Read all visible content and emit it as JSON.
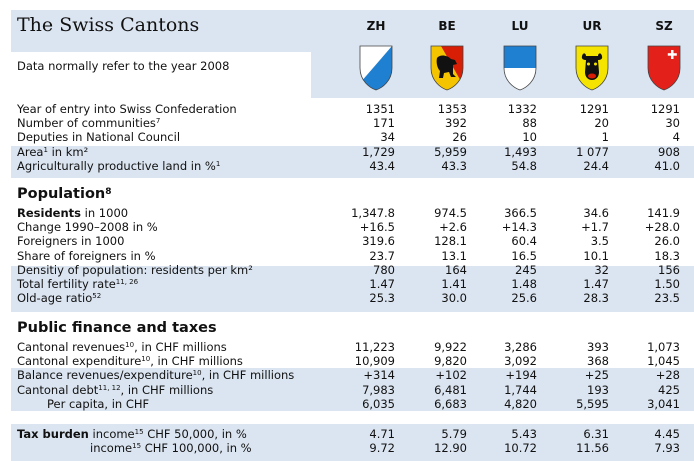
{
  "title": "The Swiss Cantons",
  "subtitle": "Data normally refer to the year 2008",
  "cantons": [
    {
      "code": "ZH",
      "crest": "zurich-crest-icon",
      "colors": [
        "#ffffff",
        "#1f7fd1"
      ]
    },
    {
      "code": "BE",
      "crest": "bern-crest-icon",
      "colors": [
        "#d81e05",
        "#f5c400",
        "#111111"
      ]
    },
    {
      "code": "LU",
      "crest": "lucerne-crest-icon",
      "colors": [
        "#1f7fd1",
        "#ffffff"
      ]
    },
    {
      "code": "UR",
      "crest": "uri-crest-icon",
      "colors": [
        "#f5e400",
        "#111111",
        "#d81e05"
      ]
    },
    {
      "code": "SZ",
      "crest": "schwyz-crest-icon",
      "colors": [
        "#e4201a",
        "#ffffff"
      ]
    }
  ],
  "sections": [
    {
      "heading": "",
      "rows": [
        {
          "label": "Year of entry into Swiss Confederation",
          "values": [
            "1351",
            "1353",
            "1332",
            "1291",
            "1291"
          ]
        },
        {
          "label": "Number of communities",
          "sup": "7",
          "values": [
            "171",
            "392",
            "88",
            "20",
            "30"
          ]
        },
        {
          "label": "Deputies in National Council",
          "values": [
            "34",
            "26",
            "10",
            "1",
            "4"
          ]
        },
        {
          "label": "Area",
          "sup": "1",
          "suffix": " in km²",
          "values": [
            "1,729",
            "5,959",
            "1,493",
            "1 077",
            "908"
          ]
        },
        {
          "label": "Agriculturally productive land in %",
          "sup": "1",
          "values": [
            "43.4",
            "43.3",
            "54.8",
            "24.4",
            "41.0"
          ]
        }
      ]
    },
    {
      "heading": "Population",
      "heading_sup": "8",
      "rows": [
        {
          "label_bold": "Residents",
          "label": " in 1000",
          "values": [
            "1,347.8",
            "974.5",
            "366.5",
            "34.6",
            "141.9"
          ]
        },
        {
          "label": "Change 1990–2008 in %",
          "values": [
            "+16.5",
            "+2.6",
            "+14.3",
            "+1.7",
            "+28.0"
          ]
        },
        {
          "label": "Foreigners in 1000",
          "values": [
            "319.6",
            "128.1",
            "60.4",
            "3.5",
            "26.0"
          ]
        },
        {
          "label": "Share of foreigners in %",
          "values": [
            "23.7",
            "13.1",
            "16.5",
            "10.1",
            "18.3"
          ]
        },
        {
          "label": "Densitiy of population: residents per km²",
          "values": [
            "780",
            "164",
            "245",
            "32",
            "156"
          ]
        },
        {
          "label": "Total fertility rate",
          "sup": "11, 26",
          "values": [
            "1.47",
            "1.41",
            "1.48",
            "1.47",
            "1.50"
          ]
        },
        {
          "label": "Old-age ratio",
          "sup": "52",
          "values": [
            "25.3",
            "30.0",
            "25.6",
            "28.3",
            "23.5"
          ]
        }
      ]
    },
    {
      "heading": "Public finance and taxes",
      "rows": [
        {
          "label": "Cantonal revenues",
          "sup": "10",
          "suffix": ", in CHF millions",
          "values": [
            "11,223",
            "9,922",
            "3,286",
            "393",
            "1,073"
          ]
        },
        {
          "label": "Cantonal expenditure",
          "sup": "10",
          "suffix": ", in CHF millions",
          "values": [
            "10,909",
            "9,820",
            "3,092",
            "368",
            "1,045"
          ]
        },
        {
          "label": "Balance revenues/expenditure",
          "sup": "10",
          "suffix": ", in CHF millions",
          "values": [
            "+314",
            "+102",
            "+194",
            "+25",
            "+28"
          ]
        },
        {
          "label": "Cantonal debt",
          "sup": "11, 12",
          "suffix": ", in CHF millions",
          "values": [
            "7,983",
            "6,481",
            "1,744",
            "193",
            "425"
          ]
        },
        {
          "label": "Per capita, in CHF",
          "indent": true,
          "values": [
            "6,035",
            "6,683",
            "4,820",
            "5,595",
            "3,041"
          ]
        }
      ]
    },
    {
      "heading": "",
      "rows": [
        {
          "label_bold": "Tax burden",
          "label": " income",
          "sup": "15",
          "suffix": " CHF 50,000, in %",
          "values": [
            "4.71",
            "5.79",
            "5.43",
            "6.31",
            "4.45"
          ]
        },
        {
          "label": "income",
          "sup": "15",
          "suffix": " CHF 100,000, in %",
          "taxsub": true,
          "values": [
            "9.72",
            "12.90",
            "10.72",
            "11.56",
            "7.93"
          ]
        }
      ]
    }
  ]
}
